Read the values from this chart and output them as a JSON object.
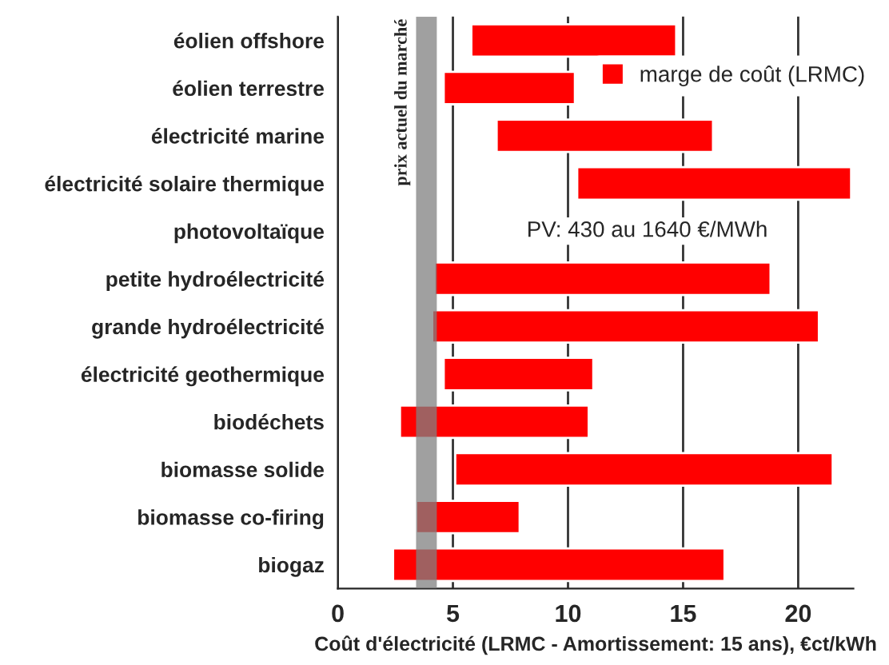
{
  "chart_data": {
    "type": "bar",
    "orientation": "horizontal",
    "categories": [
      "éolien offshore",
      "éolien terrestre",
      "électricité marine",
      "électricité solaire thermique",
      "photovoltaïque",
      "petite hydroélectricité",
      "grande hydroélectricité",
      "électricité geothermique",
      "biodéchets",
      "biomasse solide",
      "biomasse co-firing",
      "biogaz"
    ],
    "series": [
      {
        "name": "marge de coût (LRMC)",
        "color": "#ff0000",
        "base": [
          5.8,
          4.6,
          6.9,
          10.4,
          null,
          4.2,
          4.1,
          4.6,
          2.7,
          5.1,
          3.4,
          2.4
        ],
        "values": [
          8.9,
          5.7,
          9.4,
          11.9,
          null,
          14.6,
          16.8,
          6.5,
          8.2,
          16.4,
          4.5,
          14.4
        ]
      }
    ],
    "xlabel": "Coût d'électricité (LRMC - Amortissement: 15 ans), €ct/kWh",
    "xlim": [
      0,
      22.4
    ],
    "xticks": [
      0,
      5,
      10,
      15,
      20
    ],
    "bands": [
      {
        "axis": "x",
        "from": 3.4,
        "to": 4.3,
        "label": "prix actuel du marché",
        "color": "#808080"
      }
    ],
    "annotations": [
      "PV: 430 au 1640 €/MWh"
    ],
    "grid": "x",
    "legend": "top right"
  }
}
